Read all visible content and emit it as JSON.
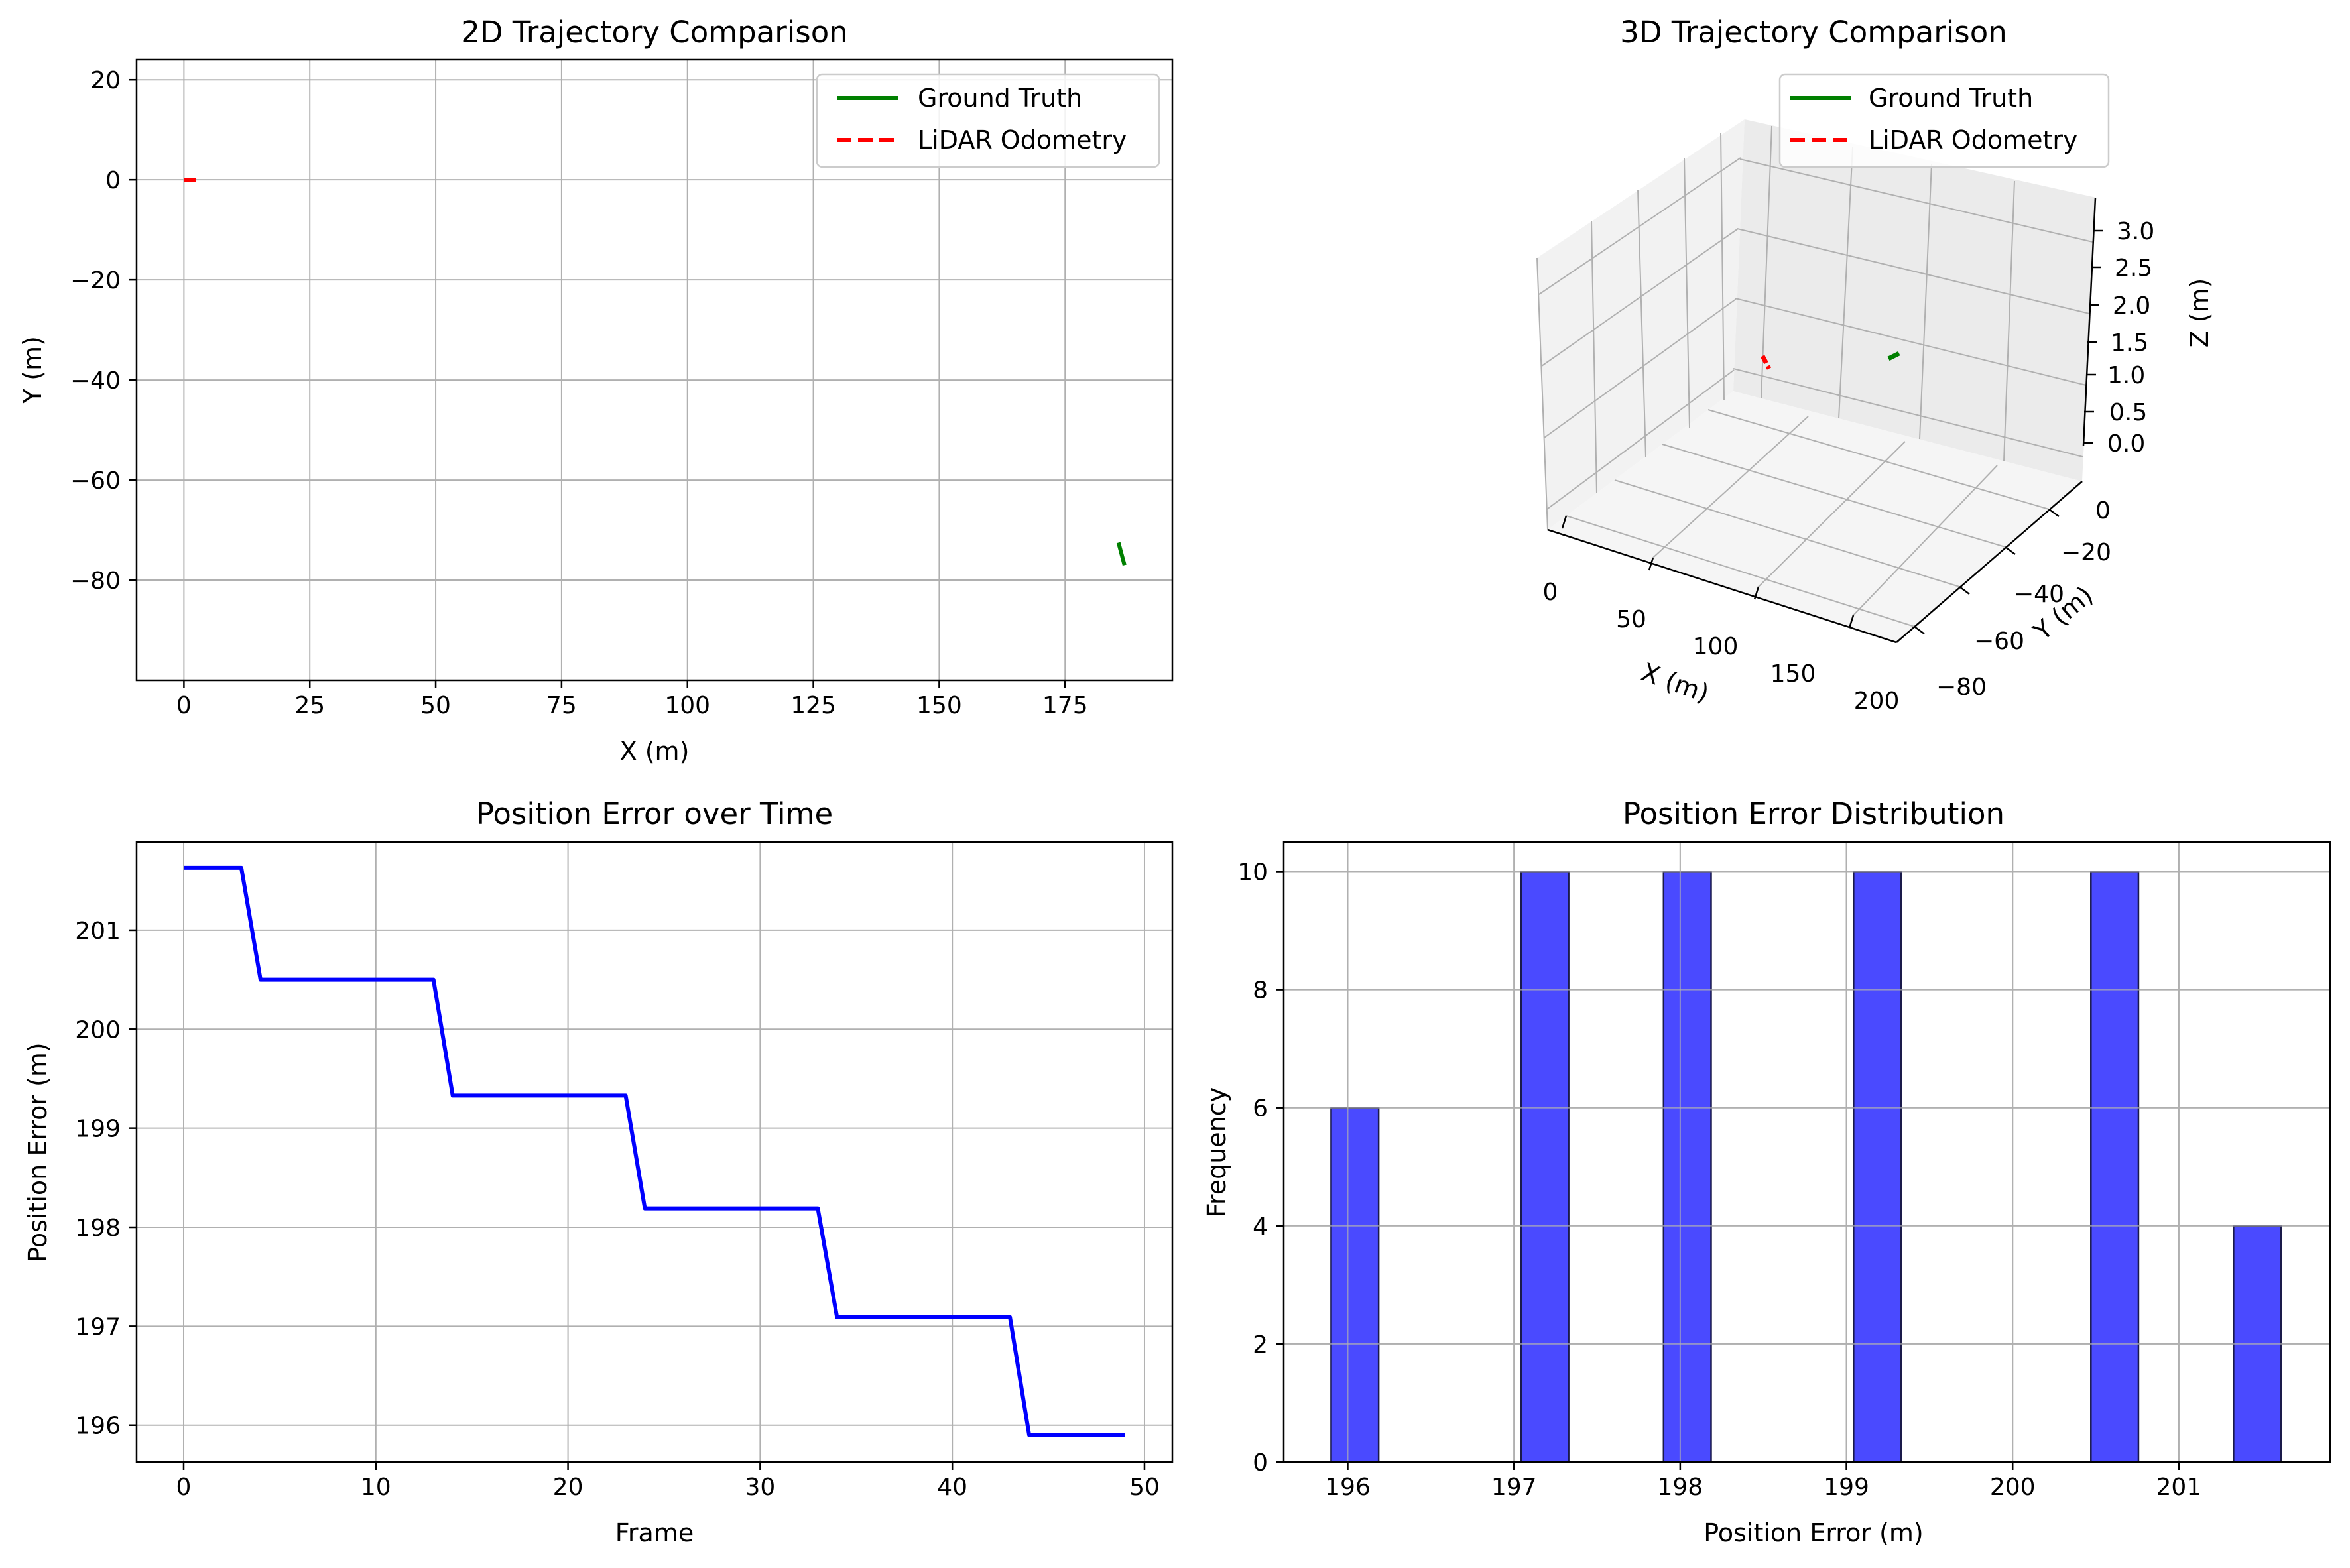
{
  "chart_data": [
    {
      "type": "line",
      "title": "2D Trajectory Comparison",
      "xlabel": "X (m)",
      "ylabel": "Y (m)",
      "xlim": [
        -9.4,
        196.3
      ],
      "ylim": [
        -100,
        24
      ],
      "xticks": [
        0,
        25,
        50,
        75,
        100,
        125,
        150,
        175
      ],
      "yticks": [
        20,
        0,
        -20,
        -40,
        -60,
        -80
      ],
      "grid": true,
      "legend_position": "top-right",
      "series": [
        {
          "name": "Ground Truth",
          "color": "#008000",
          "style": "solid",
          "x": [
            185.6,
            186.0,
            186.4,
            186.8
          ],
          "y": [
            -72.5,
            -74.0,
            -75.5,
            -77.0
          ]
        },
        {
          "name": "LiDAR Odometry",
          "color": "#ff0000",
          "style": "dashed",
          "x": [
            0.0,
            1.0,
            2.0,
            3.2
          ],
          "y": [
            0.0,
            0.0,
            0.0,
            0.0
          ]
        }
      ]
    },
    {
      "type": "line3d",
      "title": "3D Trajectory Comparison",
      "xlabel": "X (m)",
      "ylabel": "Y (m)",
      "zlabel": "Z (m)",
      "xticks": [
        0,
        50,
        100,
        150,
        200
      ],
      "yticks": [
        0,
        -20,
        -40,
        -60,
        -80
      ],
      "zticks": [
        "0.0",
        "0.5",
        "1.0",
        "1.5",
        "2.0",
        "2.5",
        "3.0"
      ],
      "legend_position": "top-right",
      "series": [
        {
          "name": "Ground Truth",
          "color": "#008000",
          "style": "solid"
        },
        {
          "name": "LiDAR Odometry",
          "color": "#ff0000",
          "style": "dashed"
        }
      ]
    },
    {
      "type": "line",
      "title": "Position Error over Time",
      "xlabel": "Frame",
      "ylabel": "Position Error (m)",
      "xlim": [
        -2.45,
        51.45
      ],
      "ylim": [
        195.63,
        201.89
      ],
      "xticks": [
        0,
        10,
        20,
        30,
        40,
        50
      ],
      "yticks": [
        201,
        200,
        199,
        198,
        197,
        196
      ],
      "grid": true,
      "series": [
        {
          "name": "",
          "color": "#0000ff",
          "x": [
            0,
            3,
            4,
            13,
            14,
            23,
            24,
            33,
            34,
            43,
            44,
            49
          ],
          "y": [
            201.63,
            201.63,
            200.5,
            200.5,
            199.33,
            199.33,
            198.19,
            198.19,
            197.09,
            197.09,
            195.9,
            195.9
          ]
        }
      ]
    },
    {
      "type": "bar",
      "title": "Position Error Distribution",
      "xlabel": "Position Error (m)",
      "ylabel": "Frequency",
      "xlim": [
        195.615,
        201.91
      ],
      "ylim": [
        0,
        10.5
      ],
      "xticks": [
        196,
        197,
        198,
        199,
        200,
        201
      ],
      "yticks": [
        0,
        2,
        4,
        6,
        8,
        10
      ],
      "grid": true,
      "bar_color": "#4a4aff",
      "bins": [
        {
          "left": 195.9,
          "right": 196.186,
          "count": 6
        },
        {
          "left": 197.043,
          "right": 197.329,
          "count": 10
        },
        {
          "left": 197.9,
          "right": 198.186,
          "count": 10
        },
        {
          "left": 199.043,
          "right": 199.329,
          "count": 10
        },
        {
          "left": 200.471,
          "right": 200.757,
          "count": 10
        },
        {
          "left": 201.329,
          "right": 201.614,
          "count": 4
        }
      ]
    }
  ]
}
